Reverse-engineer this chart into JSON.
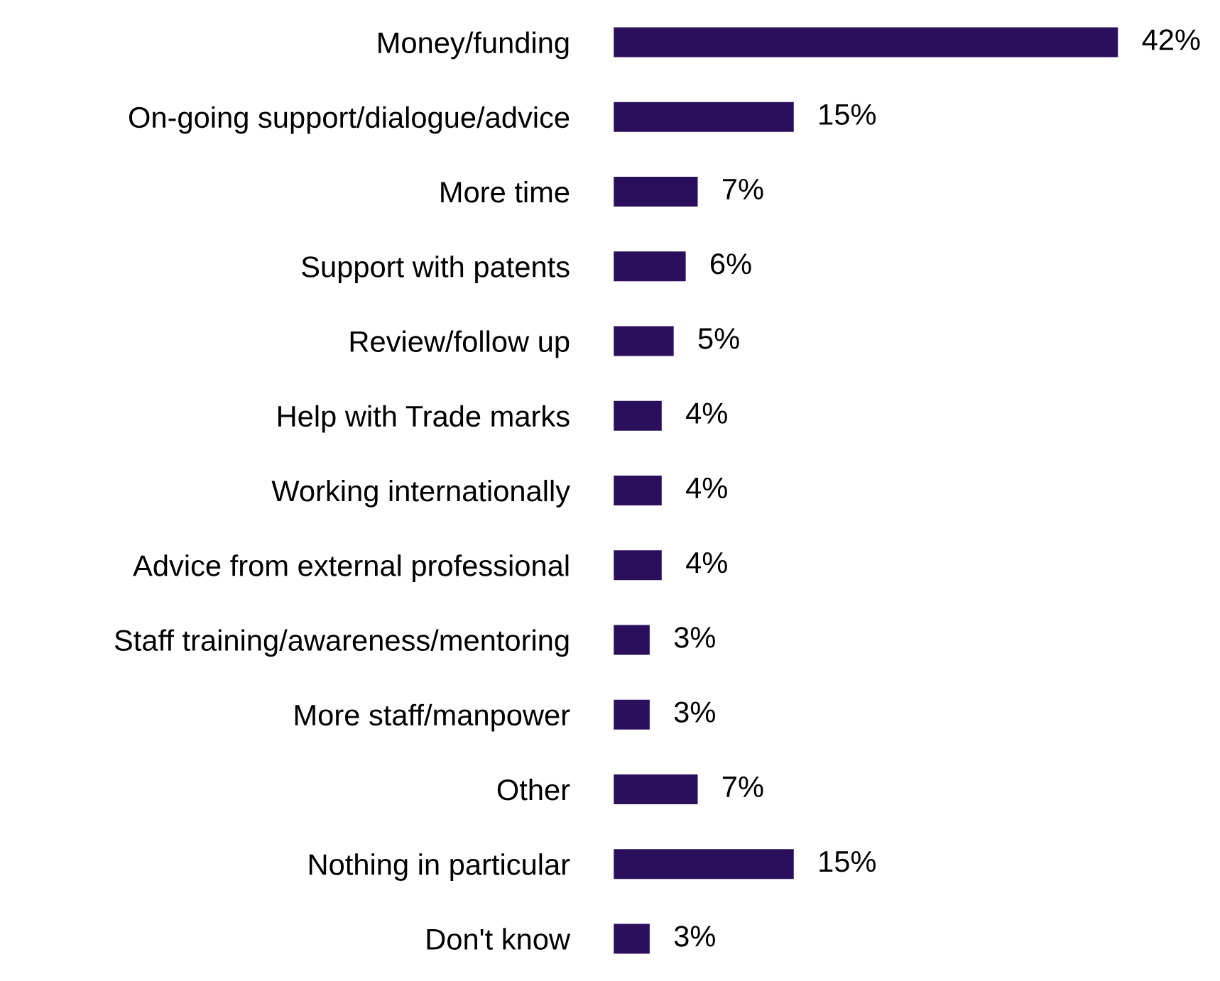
{
  "chart_data": {
    "type": "bar",
    "orientation": "horizontal",
    "categories": [
      "Money/funding",
      "On-going support/dialogue/advice",
      "More time",
      "Support with patents",
      "Review/follow up",
      "Help with Trade marks",
      "Working internationally",
      "Advice from external professional",
      "Staff training/awareness/mentoring",
      "More staff/manpower",
      "Other",
      "Nothing in particular",
      "Don't know"
    ],
    "values": [
      42,
      15,
      7,
      6,
      5,
      4,
      4,
      4,
      3,
      3,
      7,
      15,
      3
    ],
    "value_labels": [
      "42%",
      "15%",
      "7%",
      "6%",
      "5%",
      "4%",
      "4%",
      "4%",
      "3%",
      "3%",
      "7%",
      "15%",
      "3%"
    ],
    "color": "#2a0f5c"
  }
}
